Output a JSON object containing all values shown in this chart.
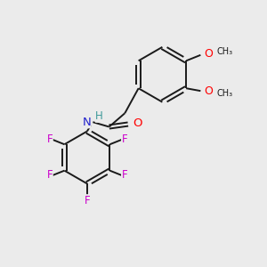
{
  "background_color": "#ebebeb",
  "bond_color": "#1a1a1a",
  "bond_width": 1.4,
  "atom_colors": {
    "O": "#ff0000",
    "N": "#2222cc",
    "F": "#cc00cc",
    "H": "#3d9999",
    "C": "#1a1a1a"
  },
  "font_size": 8.5,
  "figsize": [
    3.0,
    3.0
  ],
  "dpi": 100
}
